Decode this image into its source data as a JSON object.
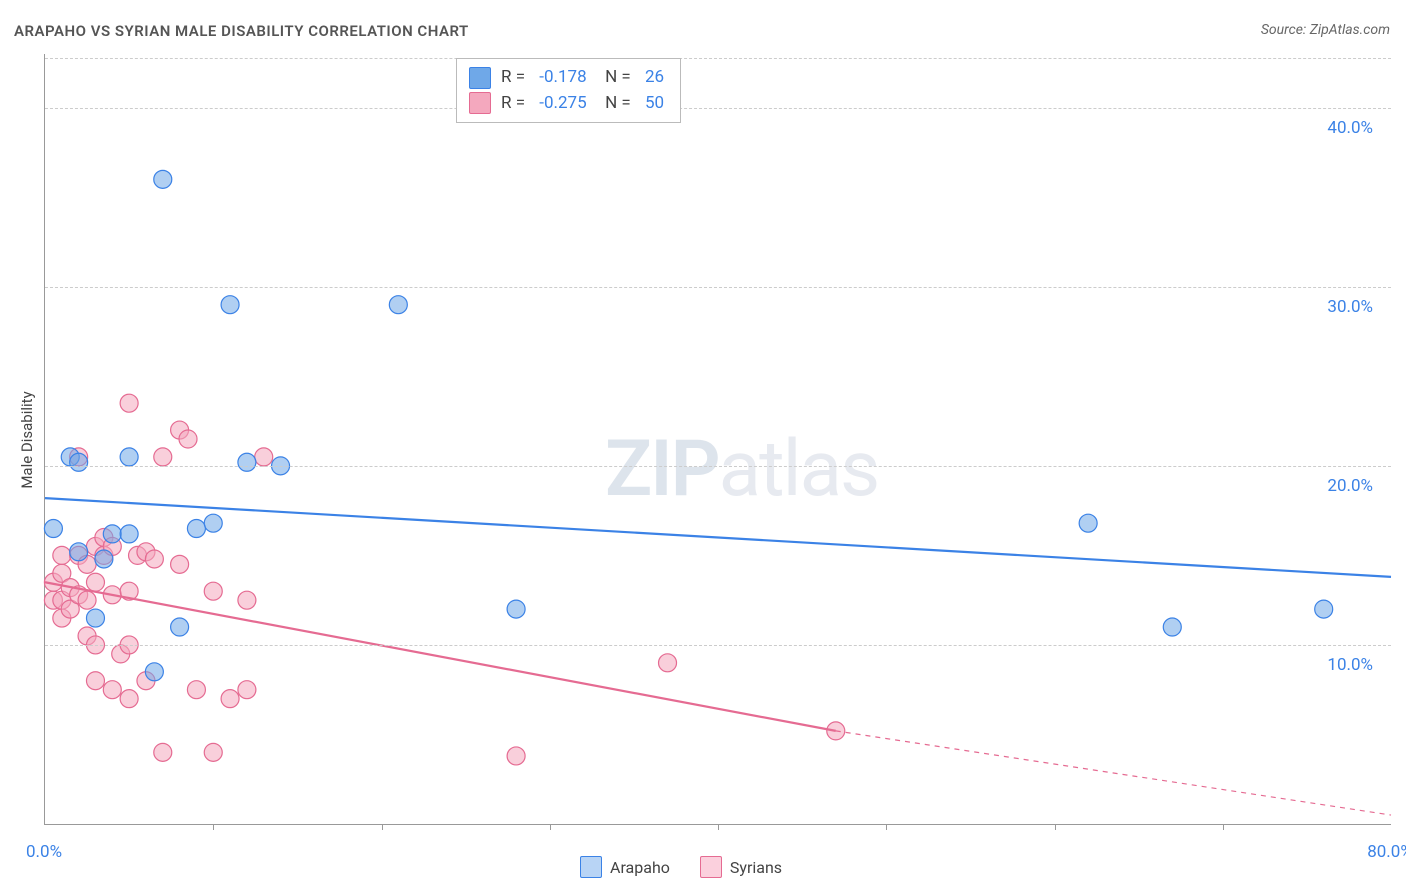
{
  "title": "ARAPAHO VS SYRIAN MALE DISABILITY CORRELATION CHART",
  "source": "Source: ZipAtlas.com",
  "ylabel": "Male Disability",
  "watermark": {
    "zip": "ZIP",
    "atlas": "atlas"
  },
  "chart": {
    "type": "scatter",
    "background_color": "#ffffff",
    "grid_color": "#cccccc",
    "axis_color": "#999999",
    "tick_label_color": "#3b82e6",
    "xlim": [
      0,
      80
    ],
    "ylim": [
      0,
      43
    ],
    "yticks": [
      10,
      20,
      30,
      40
    ],
    "ytick_labels": [
      "10.0%",
      "20.0%",
      "30.0%",
      "40.0%"
    ],
    "xticks": [
      0,
      10,
      20,
      30,
      40,
      50,
      60,
      70,
      80
    ],
    "xtick_labels": {
      "0": "0.0%",
      "80": "80.0%"
    },
    "marker_radius": 9,
    "marker_opacity": 0.55,
    "line_width": 2.2,
    "series": [
      {
        "name": "Arapaho",
        "color": "#6fa8e8",
        "stroke": "#3b82e6",
        "line_color": "#3b82e6",
        "R": "-0.178",
        "N": "26",
        "trend": {
          "x1": 0,
          "y1": 18.2,
          "x2": 80,
          "y2": 13.8
        },
        "points": [
          [
            0.5,
            16.5
          ],
          [
            1.5,
            20.5
          ],
          [
            2,
            20.2
          ],
          [
            2,
            15.2
          ],
          [
            3,
            11.5
          ],
          [
            3.5,
            14.8
          ],
          [
            4,
            16.2
          ],
          [
            5,
            16.2
          ],
          [
            5,
            20.5
          ],
          [
            6.5,
            8.5
          ],
          [
            7,
            36.0
          ],
          [
            8,
            11.0
          ],
          [
            9,
            16.5
          ],
          [
            10,
            16.8
          ],
          [
            11,
            29.0
          ],
          [
            12,
            20.2
          ],
          [
            14,
            20.0
          ],
          [
            21,
            29.0
          ],
          [
            28,
            12.0
          ],
          [
            62,
            16.8
          ],
          [
            67,
            11.0
          ],
          [
            76,
            12.0
          ]
        ]
      },
      {
        "name": "Syrians",
        "color": "#f4a8be",
        "stroke": "#e56b92",
        "line_color": "#e56b92",
        "R": "-0.275",
        "N": "50",
        "trend": {
          "x1": 0,
          "y1": 13.5,
          "x2": 47,
          "y2": 5.2
        },
        "trend_dashed": {
          "x1": 47,
          "y1": 5.2,
          "x2": 80,
          "y2": 0.5
        },
        "points": [
          [
            0.5,
            12.5
          ],
          [
            0.5,
            13.5
          ],
          [
            1,
            11.5
          ],
          [
            1,
            12.5
          ],
          [
            1,
            14.0
          ],
          [
            1,
            15.0
          ],
          [
            1.5,
            12.0
          ],
          [
            1.5,
            13.2
          ],
          [
            2,
            12.8
          ],
          [
            2,
            15.0
          ],
          [
            2,
            20.5
          ],
          [
            2.5,
            10.5
          ],
          [
            2.5,
            12.5
          ],
          [
            2.5,
            14.5
          ],
          [
            3,
            8.0
          ],
          [
            3,
            10.0
          ],
          [
            3,
            13.5
          ],
          [
            3,
            15.5
          ],
          [
            3.5,
            15.0
          ],
          [
            3.5,
            16.0
          ],
          [
            4,
            7.5
          ],
          [
            4,
            12.8
          ],
          [
            4,
            15.5
          ],
          [
            4.5,
            9.5
          ],
          [
            5,
            7.0
          ],
          [
            5,
            10.0
          ],
          [
            5,
            13.0
          ],
          [
            5,
            23.5
          ],
          [
            5.5,
            15.0
          ],
          [
            6,
            8.0
          ],
          [
            6,
            15.2
          ],
          [
            6.5,
            14.8
          ],
          [
            7,
            4.0
          ],
          [
            7,
            20.5
          ],
          [
            8,
            14.5
          ],
          [
            8,
            22.0
          ],
          [
            8.5,
            21.5
          ],
          [
            9,
            7.5
          ],
          [
            10,
            4.0
          ],
          [
            10,
            13.0
          ],
          [
            11,
            7.0
          ],
          [
            12,
            7.5
          ],
          [
            12,
            12.5
          ],
          [
            13,
            20.5
          ],
          [
            28,
            3.8
          ],
          [
            37,
            9.0
          ],
          [
            47,
            5.2
          ]
        ]
      }
    ]
  },
  "legend_bottom": [
    {
      "label": "Arapaho",
      "fill": "#b8d4f5",
      "stroke": "#3b82e6"
    },
    {
      "label": "Syrians",
      "fill": "#fbd0dd",
      "stroke": "#e56b92"
    }
  ]
}
